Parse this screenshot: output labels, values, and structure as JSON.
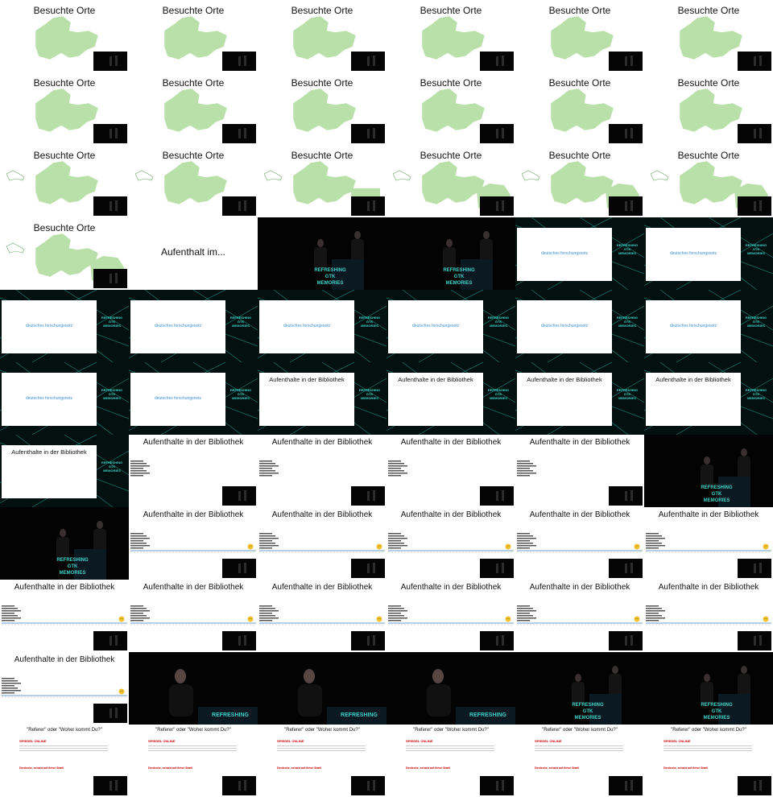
{
  "texts": {
    "besuchte_orte": "Besuchte Orte",
    "aufenthalt_im": "Aufenthalt im...",
    "deutsches_forschungsnetz": "deutsches forschungsnetz",
    "aufenthalte_bibliothek": "Aufenthalte in der Bibliothek",
    "referer": "\"Referer\" oder \"Woher kommt Du?\"",
    "refreshing": "REFRESHING",
    "gtk": "GTK",
    "memories": "MEMORIES",
    "spiegel": "SPIEGEL ONLINE",
    "spiegel_headline": "Deutsche, schaut auf diese Stadt"
  },
  "tiles": [
    "map",
    "map",
    "map",
    "map",
    "map",
    "map",
    "map",
    "map",
    "map",
    "map",
    "map",
    "map",
    "map-poland-a",
    "map-poland-a",
    "map-poland-b",
    "map-poland-c",
    "map-poland-d",
    "map-poland-d",
    "map-poland-d",
    "aufenthalt",
    "stage",
    "stage",
    "dfn",
    "dfn",
    "dfn",
    "dfn",
    "dfn",
    "dfn",
    "dfn",
    "dfn",
    "dfn",
    "dfn",
    "lib-net",
    "lib-net",
    "lib-net",
    "lib-net",
    "lib-net",
    "lib-white",
    "lib-white",
    "lib-white",
    "lib-white",
    "stage-dark",
    "stage-dark",
    "lib-timeline",
    "lib-timeline",
    "lib-timeline",
    "lib-timeline",
    "lib-timeline",
    "lib-timeline",
    "lib-timeline",
    "lib-timeline",
    "lib-timeline",
    "lib-timeline",
    "lib-timeline",
    "lib-timeline",
    "speaker",
    "speaker",
    "speaker",
    "stage2",
    "stage2",
    "referer",
    "referer",
    "referer",
    "referer",
    "referer",
    "referer"
  ],
  "colors": {
    "map_green": "#b8e0a8",
    "timeline_blue": "#3c7fbf",
    "link_blue": "#3a8fd0",
    "teal": "#3fd0c8",
    "spiegel_red": "#cc0000"
  }
}
